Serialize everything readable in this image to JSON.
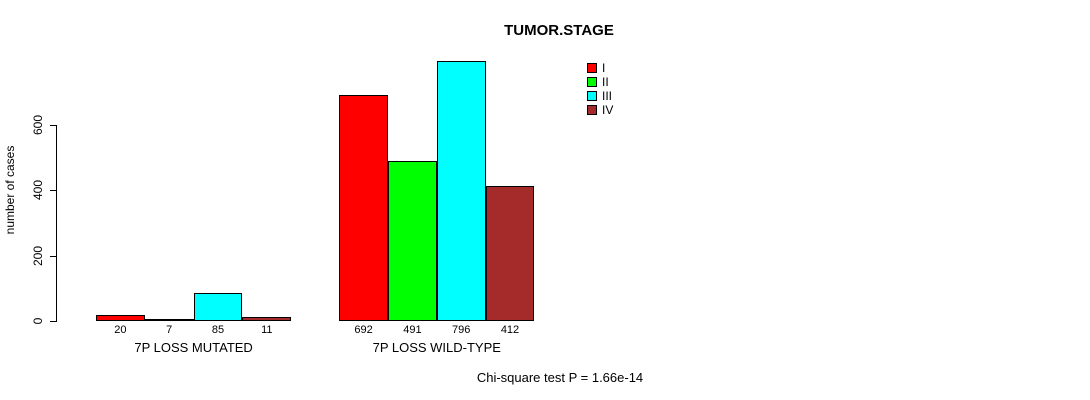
{
  "title": "TUMOR.STAGE",
  "footer": "Chi-square test P = 1.66e-14",
  "chart_data": {
    "type": "bar",
    "title": "TUMOR.STAGE",
    "xlabel": "",
    "ylabel": "number of cases",
    "categories": [
      "7P LOSS MUTATED",
      "7P LOSS WILD-TYPE"
    ],
    "series": [
      {
        "name": "I",
        "color": "#FF0000",
        "values": [
          20,
          692
        ]
      },
      {
        "name": "II",
        "color": "#00FF00",
        "values": [
          7,
          491
        ]
      },
      {
        "name": "III",
        "color": "#00FFFF",
        "values": [
          85,
          796
        ]
      },
      {
        "name": "IV",
        "color": "#A52A2A",
        "values": [
          11,
          412
        ]
      }
    ],
    "bar_value_labels": [
      [
        20,
        7,
        85,
        11
      ],
      [
        692,
        491,
        796,
        412
      ]
    ],
    "yticks": [
      0,
      200,
      400,
      600
    ],
    "ylim": [
      0,
      820
    ],
    "grid": false,
    "legend_position": "top-right",
    "legend_entries": [
      "I",
      "II",
      "III",
      "IV"
    ],
    "annotation": "Chi-square test P = 1.66e-14",
    "axis_color": "#000000",
    "background_color": "#ffffff"
  }
}
